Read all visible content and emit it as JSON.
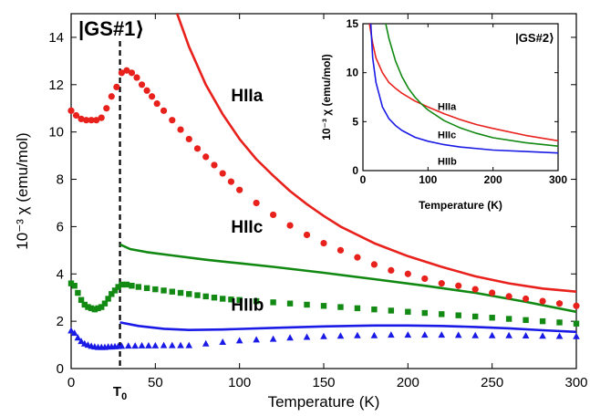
{
  "chart_data": [
    {
      "type": "line+scatter",
      "state_label": "|GS#1⟩",
      "xlabel": "Temperature (K)",
      "ylabel": "10⁻³ χ (emu/mol)",
      "xlim": [
        0,
        300
      ],
      "ylim": [
        0,
        15
      ],
      "x_ticks": [
        0,
        50,
        100,
        150,
        200,
        250,
        300
      ],
      "x_tick_labels": [
        "0",
        "50",
        "100",
        "150",
        "200",
        "250",
        "300"
      ],
      "y_ticks": [
        0,
        2,
        4,
        6,
        8,
        10,
        12,
        14
      ],
      "y_tick_labels": [
        "0",
        "2",
        "4",
        "6",
        "8",
        "10",
        "12",
        "14"
      ],
      "t0_marker": {
        "x": 29,
        "label_main": "T",
        "label_sub": "0"
      },
      "curve_labels": {
        "a": "HIIa",
        "c": "HIIc",
        "b": "HIIb"
      },
      "lines": [
        {
          "name": "HIIa",
          "color": "#e8211c",
          "x": [
            63,
            70,
            80,
            90,
            100,
            110,
            120,
            130,
            140,
            150,
            160,
            180,
            200,
            220,
            240,
            260,
            280,
            300
          ],
          "y": [
            15.0,
            13.6,
            12.0,
            10.75,
            9.7,
            8.85,
            8.15,
            7.5,
            6.95,
            6.45,
            6.0,
            5.3,
            4.75,
            4.3,
            3.9,
            3.6,
            3.38,
            3.25
          ]
        },
        {
          "name": "HIIc",
          "color": "#118811",
          "x": [
            29,
            35,
            45,
            60,
            80,
            100,
            120,
            150,
            180,
            210,
            240,
            270,
            300
          ],
          "y": [
            5.25,
            5.05,
            4.92,
            4.78,
            4.6,
            4.45,
            4.3,
            4.05,
            3.78,
            3.5,
            3.2,
            2.82,
            2.4
          ]
        },
        {
          "name": "HIIb",
          "color": "#1a1ae6",
          "x": [
            29,
            40,
            55,
            70,
            90,
            120,
            150,
            180,
            200,
            220,
            240,
            260,
            280,
            300
          ],
          "y": [
            1.95,
            1.8,
            1.68,
            1.63,
            1.65,
            1.72,
            1.78,
            1.82,
            1.82,
            1.8,
            1.76,
            1.7,
            1.62,
            1.55
          ]
        }
      ],
      "series": [
        {
          "name": "HIIa",
          "marker": "circle",
          "color": "#e8211c",
          "x": [
            0,
            3,
            6,
            9,
            12,
            15,
            18,
            21,
            24,
            27,
            30,
            33,
            36,
            39,
            42,
            45,
            48,
            51,
            55,
            60,
            65,
            70,
            75,
            80,
            85,
            90,
            95,
            100,
            110,
            120,
            130,
            140,
            150,
            160,
            170,
            180,
            190,
            200,
            210,
            220,
            230,
            240,
            250,
            260,
            270,
            280,
            290,
            300
          ],
          "y": [
            10.9,
            10.7,
            10.55,
            10.5,
            10.5,
            10.5,
            10.6,
            11.0,
            11.5,
            11.9,
            12.5,
            12.6,
            12.5,
            12.3,
            12.0,
            11.75,
            11.5,
            11.2,
            10.9,
            10.5,
            10.1,
            9.7,
            9.3,
            8.95,
            8.6,
            8.25,
            7.9,
            7.55,
            7.0,
            6.5,
            6.05,
            5.65,
            5.3,
            5.0,
            4.7,
            4.4,
            4.15,
            4.0,
            3.8,
            3.6,
            3.5,
            3.35,
            3.2,
            3.05,
            2.95,
            2.85,
            2.75,
            2.65
          ]
        },
        {
          "name": "HIIc",
          "marker": "square",
          "color": "#138a13",
          "x": [
            0,
            2,
            4,
            6,
            8,
            10,
            12,
            14,
            16,
            18,
            20,
            22,
            24,
            26,
            28,
            30,
            33,
            36,
            40,
            45,
            50,
            55,
            60,
            65,
            70,
            75,
            80,
            85,
            90,
            95,
            100,
            110,
            120,
            130,
            140,
            150,
            160,
            170,
            180,
            190,
            200,
            210,
            220,
            230,
            240,
            250,
            260,
            270,
            280,
            290,
            300
          ],
          "y": [
            3.6,
            3.5,
            3.2,
            2.9,
            2.7,
            2.6,
            2.55,
            2.5,
            2.55,
            2.6,
            2.75,
            2.95,
            3.15,
            3.3,
            3.45,
            3.55,
            3.55,
            3.5,
            3.45,
            3.4,
            3.35,
            3.3,
            3.25,
            3.2,
            3.15,
            3.1,
            3.05,
            3.0,
            2.95,
            2.92,
            2.9,
            2.85,
            2.8,
            2.75,
            2.7,
            2.65,
            2.6,
            2.55,
            2.5,
            2.45,
            2.4,
            2.35,
            2.3,
            2.25,
            2.2,
            2.15,
            2.1,
            2.05,
            2.0,
            1.95,
            1.9
          ]
        },
        {
          "name": "HIIb",
          "marker": "triangle",
          "color": "#1a1ae6",
          "x": [
            0,
            2,
            4,
            6,
            8,
            10,
            12,
            14,
            16,
            18,
            20,
            22,
            24,
            26,
            28,
            30,
            34,
            38,
            42,
            46,
            50,
            55,
            60,
            65,
            70,
            80,
            90,
            100,
            110,
            120,
            130,
            140,
            150,
            160,
            170,
            180,
            190,
            200,
            210,
            220,
            230,
            240,
            250,
            260,
            270,
            280,
            290,
            300
          ],
          "y": [
            1.6,
            1.5,
            1.3,
            1.15,
            1.05,
            1.0,
            0.95,
            0.92,
            0.9,
            0.9,
            0.9,
            0.92,
            0.92,
            0.93,
            0.94,
            0.95,
            0.96,
            0.96,
            0.97,
            0.97,
            0.97,
            0.98,
            0.98,
            0.98,
            0.98,
            1.05,
            1.12,
            1.18,
            1.22,
            1.25,
            1.3,
            1.33,
            1.36,
            1.38,
            1.4,
            1.4,
            1.42,
            1.42,
            1.42,
            1.42,
            1.41,
            1.4,
            1.4,
            1.4,
            1.39,
            1.38,
            1.37,
            1.36
          ]
        }
      ]
    },
    {
      "type": "line",
      "state_label": "|GS#2⟩",
      "xlabel": "Temperature (K)",
      "ylabel": "10⁻³ χ (emu/mol)",
      "xlim": [
        0,
        300
      ],
      "ylim": [
        0,
        15
      ],
      "x_ticks": [
        0,
        100,
        200,
        300
      ],
      "x_tick_labels": [
        "0",
        "100",
        "200",
        "300"
      ],
      "y_ticks": [
        0,
        5,
        10,
        15
      ],
      "y_tick_labels": [
        "0",
        "5",
        "10",
        "15"
      ],
      "curve_labels": {
        "a": "HIIa",
        "c": "HIIc",
        "b": "HIIb"
      },
      "lines": [
        {
          "name": "HIIa",
          "color": "#e8211c",
          "x": [
            10,
            15,
            20,
            30,
            40,
            50,
            60,
            80,
            100,
            125,
            150,
            175,
            200,
            250,
            300
          ],
          "y": [
            15.0,
            13.0,
            11.5,
            10.0,
            9.0,
            8.4,
            7.9,
            7.1,
            6.5,
            5.8,
            5.2,
            4.7,
            4.3,
            3.6,
            3.05
          ]
        },
        {
          "name": "HIIc",
          "color": "#118811",
          "x": [
            35,
            40,
            50,
            60,
            70,
            80,
            90,
            100,
            125,
            150,
            175,
            200,
            250,
            300
          ],
          "y": [
            15.0,
            13.5,
            11.2,
            9.6,
            8.4,
            7.5,
            6.8,
            6.2,
            5.1,
            4.35,
            3.8,
            3.35,
            2.85,
            2.5
          ]
        },
        {
          "name": "HIIb",
          "color": "#1a1ae6",
          "x": [
            12,
            15,
            20,
            30,
            40,
            50,
            60,
            80,
            100,
            125,
            150,
            200,
            250,
            300
          ],
          "y": [
            15.0,
            11.5,
            9.0,
            6.5,
            5.3,
            4.6,
            4.1,
            3.4,
            3.0,
            2.65,
            2.4,
            2.1,
            1.95,
            1.8
          ]
        }
      ]
    }
  ]
}
